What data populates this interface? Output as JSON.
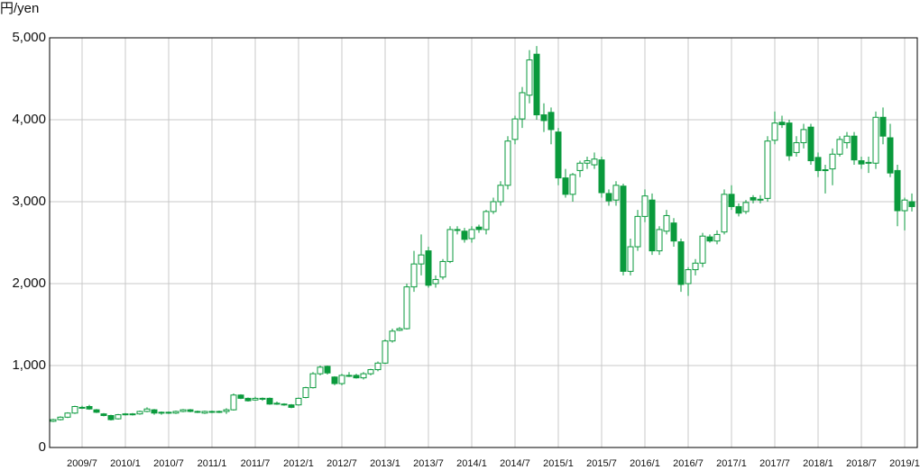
{
  "chart_data": {
    "type": "candlestick",
    "y_label": "円/yen",
    "color": "#0a9a3c",
    "grid": true,
    "ylim": [
      0,
      5000
    ],
    "yticks": [
      0,
      {
        "value": 1000,
        "label": "1,000"
      },
      {
        "value": 2000,
        "label": "2,000"
      },
      {
        "value": 3000,
        "label": "3,000"
      },
      {
        "value": 4000,
        "label": "4,000"
      },
      {
        "value": 5000,
        "label": "5,000"
      }
    ],
    "categories": [
      null,
      null,
      null,
      null,
      "2009/7",
      null,
      null,
      null,
      null,
      null,
      "2010/1",
      null,
      null,
      null,
      null,
      null,
      "2010/7",
      null,
      null,
      null,
      null,
      null,
      "2011/1",
      null,
      null,
      null,
      null,
      null,
      "2011/7",
      null,
      null,
      null,
      null,
      null,
      "2012/1",
      null,
      null,
      null,
      null,
      null,
      "2012/7",
      null,
      null,
      null,
      null,
      null,
      "2013/1",
      null,
      null,
      null,
      null,
      null,
      "2013/7",
      null,
      null,
      null,
      null,
      null,
      "2014/1",
      null,
      null,
      null,
      null,
      null,
      "2014/7",
      null,
      null,
      null,
      null,
      null,
      "2015/1",
      null,
      null,
      null,
      null,
      null,
      "2015/7",
      null,
      null,
      null,
      null,
      null,
      "2016/1",
      null,
      null,
      null,
      null,
      null,
      "2016/7",
      null,
      null,
      null,
      null,
      null,
      "2017/1",
      null,
      null,
      null,
      null,
      null,
      "2017/7",
      null,
      null,
      null,
      null,
      null,
      "2018/1",
      null,
      null,
      null,
      null,
      null,
      "2018/7",
      null,
      null,
      null,
      null,
      null,
      "2019/1",
      null
    ],
    "open": [
      320,
      340,
      370,
      420,
      480,
      500,
      460,
      410,
      390,
      350,
      400,
      410,
      410,
      440,
      460,
      420,
      430,
      420,
      440,
      460,
      440,
      420,
      440,
      430,
      440,
      460,
      640,
      600,
      580,
      600,
      600,
      540,
      530,
      520,
      520,
      610,
      730,
      900,
      990,
      860,
      780,
      880,
      880,
      850,
      900,
      950,
      1030,
      1300,
      1430,
      1450,
      1960,
      2240,
      2400,
      2000,
      2080,
      2270,
      2660,
      2640,
      2550,
      2690,
      2660,
      2880,
      3000,
      3200,
      3760,
      4010,
      4300,
      4800,
      4060,
      4090,
      3850,
      3290,
      3090,
      3380,
      3470,
      3450,
      3510,
      3100,
      3020,
      3190,
      2150,
      2450,
      2820,
      3020,
      2400,
      2640,
      2740,
      2510,
      2000,
      2170,
      2250,
      2570,
      2520,
      2630,
      3090,
      2940,
      2880,
      3050,
      3030,
      3040,
      3750,
      3970,
      3960,
      3600,
      3720,
      3910,
      3540,
      3390,
      3400,
      3580,
      3720,
      3800,
      3500,
      3480,
      3470,
      4030,
      3780,
      3380,
      2890,
      3000
    ],
    "high": [
      350,
      380,
      430,
      510,
      510,
      520,
      470,
      420,
      400,
      410,
      420,
      420,
      450,
      490,
      470,
      440,
      440,
      450,
      470,
      470,
      450,
      450,
      450,
      450,
      480,
      660,
      650,
      610,
      620,
      610,
      610,
      560,
      540,
      530,
      610,
      740,
      920,
      1000,
      1000,
      870,
      900,
      920,
      900,
      920,
      960,
      1050,
      1320,
      1450,
      1470,
      2000,
      2400,
      2600,
      2450,
      2100,
      2300,
      2700,
      2700,
      2680,
      2700,
      2720,
      2900,
      3050,
      3250,
      3800,
      4050,
      4400,
      4850,
      4900,
      4200,
      4150,
      3900,
      3400,
      3350,
      3500,
      3550,
      3600,
      3550,
      3150,
      3250,
      3220,
      2550,
      2900,
      3150,
      3100,
      2700,
      2900,
      2800,
      2550,
      2200,
      2300,
      2620,
      2600,
      2650,
      3150,
      3200,
      2980,
      3020,
      3080,
      3080,
      3800,
      4100,
      4050,
      4000,
      3800,
      3950,
      3950,
      3600,
      3450,
      3650,
      3800,
      3850,
      3850,
      3550,
      3550,
      4100,
      4150,
      3950,
      3450,
      3050,
      3100
    ],
    "low": [
      310,
      330,
      360,
      410,
      470,
      460,
      420,
      380,
      330,
      340,
      390,
      390,
      400,
      430,
      400,
      400,
      410,
      410,
      430,
      430,
      420,
      410,
      420,
      420,
      410,
      450,
      590,
      560,
      570,
      570,
      520,
      520,
      510,
      480,
      510,
      600,
      720,
      880,
      890,
      760,
      760,
      860,
      840,
      830,
      880,
      930,
      1020,
      1280,
      1420,
      1440,
      1900,
      2100,
      1950,
      1950,
      2050,
      2250,
      2600,
      2500,
      2500,
      2620,
      2600,
      2850,
      2950,
      3150,
      3700,
      3900,
      4200,
      4000,
      3850,
      3700,
      3200,
      3050,
      3000,
      3300,
      3400,
      3400,
      3050,
      2950,
      2950,
      2100,
      2100,
      2400,
      2750,
      2350,
      2350,
      2600,
      2450,
      1900,
      1850,
      2100,
      2200,
      2500,
      2480,
      2600,
      2900,
      2820,
      2850,
      2980,
      2980,
      3000,
      3700,
      3900,
      3500,
      3550,
      3650,
      3450,
      3300,
      3100,
      3200,
      3550,
      3650,
      3450,
      3400,
      3350,
      3400,
      3700,
      3300,
      2700,
      2650,
      2880
    ],
    "close": [
      340,
      370,
      420,
      500,
      490,
      470,
      430,
      390,
      340,
      400,
      410,
      400,
      440,
      470,
      420,
      430,
      420,
      440,
      460,
      440,
      430,
      440,
      430,
      440,
      460,
      640,
      600,
      570,
      600,
      590,
      530,
      530,
      520,
      490,
      600,
      730,
      900,
      980,
      910,
      780,
      880,
      880,
      850,
      900,
      950,
      1030,
      1300,
      1420,
      1450,
      1960,
      2240,
      2350,
      1980,
      2050,
      2270,
      2660,
      2650,
      2540,
      2660,
      2660,
      2880,
      3000,
      3200,
      3740,
      4010,
      4330,
      4730,
      4060,
      3990,
      3880,
      3290,
      3090,
      3330,
      3470,
      3500,
      3520,
      3110,
      3010,
      3200,
      2150,
      2450,
      2820,
      3070,
      2400,
      2660,
      2830,
      2520,
      1990,
      2170,
      2250,
      2580,
      2520,
      2600,
      3090,
      2940,
      2860,
      2990,
      3020,
      3030,
      3740,
      3960,
      3940,
      3560,
      3720,
      3880,
      3500,
      3380,
      3380,
      3580,
      3760,
      3800,
      3510,
      3460,
      3470,
      4030,
      3800,
      3350,
      2890,
      3020,
      2940
    ]
  }
}
